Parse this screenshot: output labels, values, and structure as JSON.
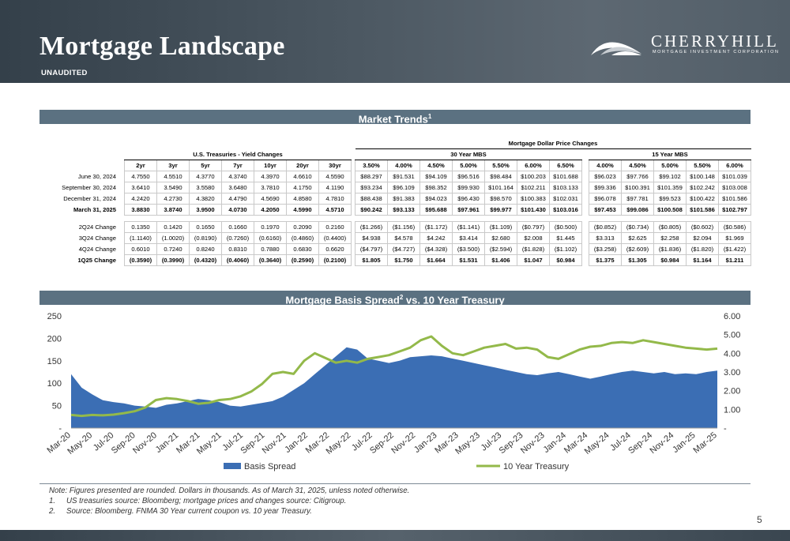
{
  "header": {
    "title": "Mortgage Landscape",
    "subtitle": "UNAUDITED",
    "logo_name": "CHERRYHILL",
    "logo_tagline": "MORTGAGE INVESTMENT CORPORATION"
  },
  "market_trends": {
    "section_title": "Market Trends",
    "section_sup": "1",
    "top_header": "Mortgage Dollar Price Changes",
    "ust_header": "U.S. Treasuries - Yield Changes",
    "mbs30_header": "30 Year MBS",
    "mbs15_header": "15 Year MBS",
    "ust_cols": [
      "2yr",
      "3yr",
      "5yr",
      "7yr",
      "10yr",
      "20yr",
      "30yr"
    ],
    "mbs30_cols": [
      "3.50%",
      "4.00%",
      "4.50%",
      "5.00%",
      "5.50%",
      "6.00%",
      "6.50%"
    ],
    "mbs15_cols": [
      "4.00%",
      "4.50%",
      "5.00%",
      "5.50%",
      "6.00%"
    ],
    "levels": [
      {
        "label": "June 30, 2024",
        "bold": false,
        "ust": [
          "4.7550",
          "4.5510",
          "4.3770",
          "4.3740",
          "4.3970",
          "4.6610",
          "4.5590"
        ],
        "mbs30": [
          "$88.297",
          "$91.531",
          "$94.109",
          "$96.516",
          "$98.484",
          "$100.203",
          "$101.688"
        ],
        "mbs15": [
          "$96.023",
          "$97.766",
          "$99.102",
          "$100.148",
          "$101.039"
        ]
      },
      {
        "label": "September 30, 2024",
        "bold": false,
        "ust": [
          "3.6410",
          "3.5490",
          "3.5580",
          "3.6480",
          "3.7810",
          "4.1750",
          "4.1190"
        ],
        "mbs30": [
          "$93.234",
          "$96.109",
          "$98.352",
          "$99.930",
          "$101.164",
          "$102.211",
          "$103.133"
        ],
        "mbs15": [
          "$99.336",
          "$100.391",
          "$101.359",
          "$102.242",
          "$103.008"
        ]
      },
      {
        "label": "December 31, 2024",
        "bold": false,
        "ust": [
          "4.2420",
          "4.2730",
          "4.3820",
          "4.4790",
          "4.5690",
          "4.8580",
          "4.7810"
        ],
        "mbs30": [
          "$88.438",
          "$91.383",
          "$94.023",
          "$96.430",
          "$98.570",
          "$100.383",
          "$102.031"
        ],
        "mbs15": [
          "$96.078",
          "$97.781",
          "$99.523",
          "$100.422",
          "$101.586"
        ]
      },
      {
        "label": "March 31, 2025",
        "bold": true,
        "ust": [
          "3.8830",
          "3.8740",
          "3.9500",
          "4.0730",
          "4.2050",
          "4.5990",
          "4.5710"
        ],
        "mbs30": [
          "$90.242",
          "$93.133",
          "$95.688",
          "$97.961",
          "$99.977",
          "$101.430",
          "$103.016"
        ],
        "mbs15": [
          "$97.453",
          "$99.086",
          "$100.508",
          "$101.586",
          "$102.797"
        ]
      }
    ],
    "changes": [
      {
        "label": "2Q24 Change",
        "bold": false,
        "ust": [
          "0.1350",
          "0.1420",
          "0.1650",
          "0.1660",
          "0.1970",
          "0.2090",
          "0.2160"
        ],
        "mbs30": [
          "($1.266)",
          "($1.156)",
          "($1.172)",
          "($1.141)",
          "($1.109)",
          "($0.797)",
          "($0.500)"
        ],
        "mbs15": [
          "($0.852)",
          "($0.734)",
          "($0.805)",
          "($0.602)",
          "($0.586)"
        ]
      },
      {
        "label": "3Q24 Change",
        "bold": false,
        "ust": [
          "(1.1140)",
          "(1.0020)",
          "(0.8190)",
          "(0.7260)",
          "(0.6160)",
          "(0.4860)",
          "(0.4400)"
        ],
        "mbs30": [
          "$4.938",
          "$4.578",
          "$4.242",
          "$3.414",
          "$2.680",
          "$2.008",
          "$1.445"
        ],
        "mbs15": [
          "$3.313",
          "$2.625",
          "$2.258",
          "$2.094",
          "$1.969"
        ]
      },
      {
        "label": "4Q24 Change",
        "bold": false,
        "ust": [
          "0.6010",
          "0.7240",
          "0.8240",
          "0.8310",
          "0.7880",
          "0.6830",
          "0.6620"
        ],
        "mbs30": [
          "($4.797)",
          "($4.727)",
          "($4.328)",
          "($3.500)",
          "($2.594)",
          "($1.828)",
          "($1.102)"
        ],
        "mbs15": [
          "($3.258)",
          "($2.609)",
          "($1.836)",
          "($1.820)",
          "($1.422)"
        ]
      },
      {
        "label": "1Q25 Change",
        "bold": true,
        "ust": [
          "(0.3590)",
          "(0.3990)",
          "(0.4320)",
          "(0.4060)",
          "(0.3640)",
          "(0.2590)",
          "(0.2100)"
        ],
        "mbs30": [
          "$1.805",
          "$1.750",
          "$1.664",
          "$1.531",
          "$1.406",
          "$1.047",
          "$0.984"
        ],
        "mbs15": [
          "$1.375",
          "$1.305",
          "$0.984",
          "$1.164",
          "$1.211"
        ]
      }
    ]
  },
  "basis_section": {
    "title": "Mortgage Basis Spread",
    "sup": "2",
    "title_suffix": " vs. 10 Year Treasury"
  },
  "chart_data": {
    "type": "area",
    "x_tick_labels": [
      "Mar-20",
      "May-20",
      "Jul-20",
      "Sep-20",
      "Nov-20",
      "Jan-21",
      "Mar-21",
      "May-21",
      "Jul-21",
      "Sep-21",
      "Nov-21",
      "Jan-22",
      "Mar-22",
      "May-22",
      "Jul-22",
      "Sep-22",
      "Nov-22",
      "Jan-23",
      "Mar-23",
      "May-23",
      "Jul-23",
      "Sep-23",
      "Nov-23",
      "Jan-24",
      "Mar-24",
      "May-24",
      "Jul-24",
      "Sep-24",
      "Nov-24",
      "Jan-25",
      "Mar-25"
    ],
    "y_left_tick_labels": [
      "250",
      "200",
      "150",
      "100",
      "50",
      "-"
    ],
    "y_right_tick_labels": [
      "6.00",
      "5.00",
      "4.00",
      "3.00",
      "2.00",
      "1.00",
      "-"
    ],
    "y_left_range": [
      0,
      250
    ],
    "y_right_range": [
      0,
      6
    ],
    "series": [
      {
        "name": "Basis Spread",
        "axis": "left",
        "color": "#3b6eb4",
        "kind": "area",
        "values": [
          120,
          90,
          75,
          62,
          58,
          55,
          50,
          48,
          45,
          52,
          55,
          60,
          65,
          62,
          58,
          50,
          48,
          52,
          56,
          60,
          70,
          85,
          100,
          120,
          140,
          160,
          180,
          175,
          155,
          150,
          145,
          150,
          158,
          160,
          162,
          160,
          155,
          150,
          145,
          140,
          135,
          130,
          125,
          120,
          118,
          122,
          125,
          120,
          115,
          110,
          115,
          120,
          125,
          128,
          125,
          122,
          125,
          120,
          122,
          120,
          125,
          128
        ]
      },
      {
        "name": "10 Year Treasury",
        "axis": "right",
        "color": "#93b94a",
        "kind": "line",
        "values": [
          0.7,
          0.65,
          0.7,
          0.68,
          0.72,
          0.8,
          0.9,
          1.1,
          1.5,
          1.6,
          1.55,
          1.45,
          1.3,
          1.35,
          1.5,
          1.55,
          1.7,
          1.95,
          2.35,
          2.9,
          3.0,
          2.9,
          3.6,
          4.0,
          3.75,
          3.5,
          3.6,
          3.5,
          3.7,
          3.8,
          3.9,
          4.1,
          4.3,
          4.7,
          4.9,
          4.4,
          4.0,
          3.9,
          4.1,
          4.3,
          4.4,
          4.5,
          4.25,
          4.3,
          4.2,
          3.8,
          3.7,
          3.95,
          4.2,
          4.35,
          4.4,
          4.55,
          4.6,
          4.55,
          4.7,
          4.6,
          4.5,
          4.4,
          4.3,
          4.25,
          4.2,
          4.25
        ]
      }
    ],
    "legend_position": "bottom"
  },
  "footnotes": {
    "note": "Note: Figures presented are rounded. Dollars in thousands. As of March 31, 2025, unless noted otherwise.",
    "n1_num": "1.",
    "n1": "US treasuries source: Bloomberg; mortgage prices and changes source: Citigroup.",
    "n2_num": "2.",
    "n2": "Source: Bloomberg.  FNMA 30 Year current coupon vs. 10 year Treasury."
  },
  "page_number": "5"
}
